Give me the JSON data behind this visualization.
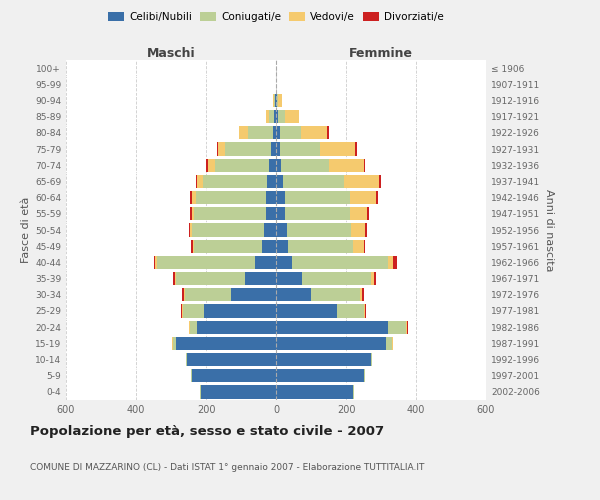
{
  "age_groups": [
    "0-4",
    "5-9",
    "10-14",
    "15-19",
    "20-24",
    "25-29",
    "30-34",
    "35-39",
    "40-44",
    "45-49",
    "50-54",
    "55-59",
    "60-64",
    "65-69",
    "70-74",
    "75-79",
    "80-84",
    "85-89",
    "90-94",
    "95-99",
    "100+"
  ],
  "birth_years": [
    "2002-2006",
    "1997-2001",
    "1992-1996",
    "1987-1991",
    "1982-1986",
    "1977-1981",
    "1972-1976",
    "1967-1971",
    "1962-1966",
    "1957-1961",
    "1952-1956",
    "1947-1951",
    "1942-1946",
    "1937-1941",
    "1932-1936",
    "1927-1931",
    "1922-1926",
    "1917-1921",
    "1912-1916",
    "1907-1911",
    "≤ 1906"
  ],
  "colors": {
    "celibi": "#3a6fa8",
    "coniugati": "#bccf96",
    "vedovi": "#f5ca6e",
    "divorziati": "#cc2020"
  },
  "maschi": {
    "celibi": [
      215,
      240,
      255,
      285,
      225,
      205,
      130,
      90,
      60,
      40,
      35,
      30,
      30,
      25,
      20,
      15,
      10,
      5,
      2,
      0,
      0
    ],
    "coniugati": [
      3,
      3,
      3,
      10,
      20,
      60,
      130,
      195,
      280,
      195,
      205,
      205,
      200,
      185,
      155,
      130,
      70,
      15,
      5,
      0,
      0
    ],
    "vedovi": [
      0,
      0,
      0,
      2,
      3,
      3,
      3,
      5,
      5,
      3,
      5,
      5,
      10,
      15,
      20,
      20,
      25,
      10,
      3,
      0,
      0
    ],
    "divorziati": [
      0,
      0,
      0,
      0,
      2,
      3,
      5,
      5,
      5,
      5,
      5,
      5,
      5,
      5,
      5,
      5,
      0,
      0,
      0,
      0,
      0
    ]
  },
  "femmine": {
    "celibi": [
      220,
      250,
      270,
      315,
      320,
      175,
      100,
      75,
      45,
      35,
      30,
      25,
      25,
      20,
      15,
      12,
      10,
      5,
      2,
      0,
      0
    ],
    "coniugati": [
      3,
      5,
      5,
      15,
      50,
      75,
      140,
      195,
      275,
      185,
      185,
      185,
      185,
      175,
      135,
      115,
      60,
      20,
      5,
      0,
      0
    ],
    "vedovi": [
      0,
      0,
      0,
      3,
      5,
      5,
      5,
      10,
      15,
      30,
      40,
      50,
      75,
      100,
      100,
      100,
      75,
      40,
      10,
      0,
      0
    ],
    "divorziati": [
      0,
      0,
      0,
      0,
      2,
      3,
      5,
      5,
      10,
      5,
      5,
      5,
      5,
      5,
      5,
      5,
      5,
      0,
      0,
      0,
      0
    ]
  },
  "xlim": 600,
  "title": "Popolazione per età, sesso e stato civile - 2007",
  "subtitle": "COMUNE DI MAZZARINO (CL) - Dati ISTAT 1° gennaio 2007 - Elaborazione TUTTITALIA.IT",
  "ylabel_left": "Fasce di età",
  "ylabel_right": "Anni di nascita",
  "legend_labels": [
    "Celibi/Nubili",
    "Coniugati/e",
    "Vedovi/e",
    "Divorziati/e"
  ],
  "maschi_label": "Maschi",
  "femmine_label": "Femmine",
  "bg_color": "#f0f0f0",
  "plot_bg": "#ffffff"
}
